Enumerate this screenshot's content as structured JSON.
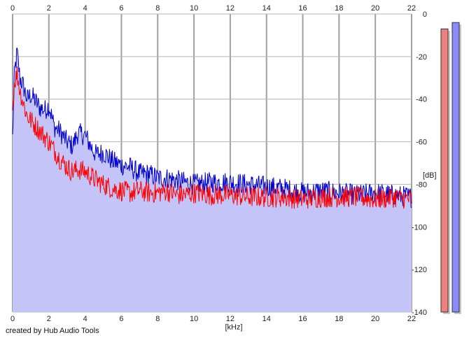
{
  "credit": "created by Hub Audio Tools",
  "chart_data": {
    "type": "line",
    "title": "",
    "xlabel": "[kHz]",
    "ylabel": "[dB]",
    "xlim": [
      0,
      22
    ],
    "ylim": [
      -140,
      0
    ],
    "x_ticks": [
      0,
      2,
      4,
      6,
      8,
      10,
      12,
      14,
      16,
      18,
      20,
      22
    ],
    "y_ticks": [
      0,
      -20,
      -40,
      -60,
      -80,
      -100,
      -120,
      -140
    ],
    "grid": true,
    "fill_color": "#c4c4f8",
    "series": [
      {
        "name": "",
        "color": "#0000cc",
        "x": [
          0,
          0.1,
          0.25,
          0.4,
          0.6,
          0.8,
          1.0,
          1.2,
          1.5,
          1.8,
          2.0,
          2.3,
          2.6,
          3.0,
          3.3,
          3.6,
          4.0,
          4.3,
          4.6,
          5.0,
          5.5,
          6.0,
          6.5,
          7.0,
          7.5,
          8.0,
          8.5,
          9.0,
          9.5,
          10.0,
          11,
          12,
          13,
          14,
          15,
          16,
          17,
          18,
          19,
          20,
          21,
          22
        ],
        "values": [
          -58,
          -28,
          -18,
          -30,
          -34,
          -40,
          -38,
          -40,
          -44,
          -45,
          -43,
          -53,
          -55,
          -60,
          -62,
          -56,
          -57,
          -62,
          -66,
          -65,
          -69,
          -71,
          -72,
          -75,
          -75,
          -77,
          -77,
          -78,
          -79,
          -80,
          -79,
          -79,
          -80,
          -81,
          -82,
          -84,
          -83,
          -84,
          -85,
          -84,
          -85,
          -86
        ]
      },
      {
        "name": "",
        "color": "#ff0000",
        "x": [
          0,
          0.1,
          0.25,
          0.4,
          0.6,
          0.8,
          1.0,
          1.2,
          1.5,
          1.8,
          2.0,
          2.3,
          2.6,
          3.0,
          3.3,
          3.6,
          4.0,
          4.3,
          4.6,
          5.0,
          5.5,
          6.0,
          6.5,
          7.0,
          7.5,
          8.0,
          8.5,
          9.0,
          9.5,
          10.0,
          11,
          12,
          13,
          14,
          15,
          16,
          17,
          18,
          19,
          20,
          21,
          22
        ],
        "values": [
          -45,
          -32,
          -28,
          -36,
          -42,
          -48,
          -50,
          -52,
          -55,
          -58,
          -60,
          -64,
          -68,
          -72,
          -74,
          -73,
          -74,
          -76,
          -78,
          -80,
          -82,
          -83,
          -84,
          -83,
          -84,
          -84,
          -83,
          -85,
          -85,
          -84,
          -85,
          -85,
          -86,
          -86,
          -86,
          -87,
          -86,
          -86,
          -86,
          -87,
          -86,
          -87
        ]
      }
    ],
    "meters": [
      {
        "color": "#f08080",
        "value_db": -7
      },
      {
        "color": "#8a8af8",
        "value_db": -4
      }
    ]
  }
}
